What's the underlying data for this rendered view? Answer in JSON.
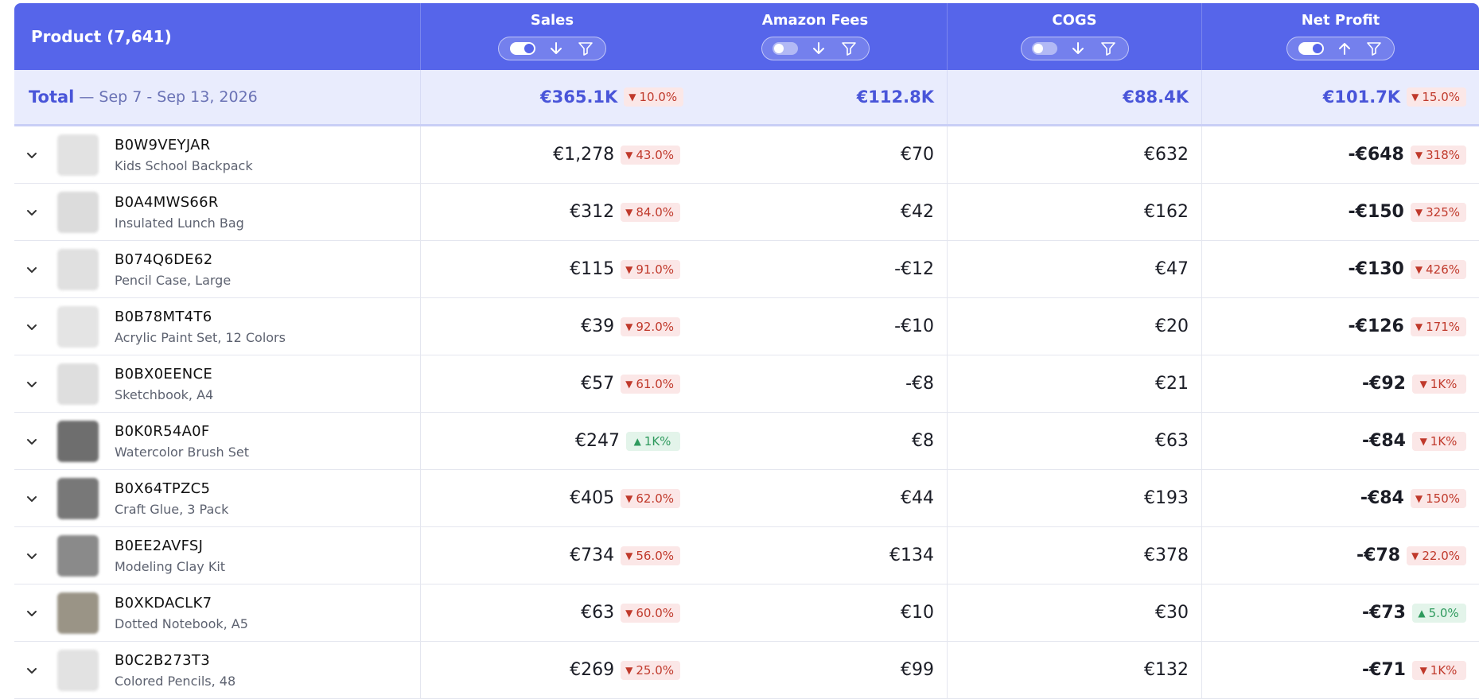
{
  "header": {
    "product_label": "Product (7,641)",
    "columns": [
      {
        "title": "Sales",
        "toggle": "on",
        "sort": "arrow-down-icon"
      },
      {
        "title": "Amazon Fees",
        "toggle": "off",
        "sort": "arrow-down-icon"
      },
      {
        "title": "COGS",
        "toggle": "off",
        "sort": "arrow-down-icon"
      },
      {
        "title": "Net Profit",
        "toggle": "on",
        "sort": "arrow-up-icon"
      }
    ]
  },
  "total": {
    "label": "Total",
    "date_range": "— Sep 7 - Sep 13, 2026",
    "sales": "€365.1K",
    "sales_change": "10.0%",
    "sales_dir": "down",
    "fees": "€112.8K",
    "cogs": "€88.4K",
    "net": "€101.7K",
    "net_change": "15.0%",
    "net_dir": "down"
  },
  "rows": [
    {
      "asin": "B0W9VEYJAR",
      "name": "Kids School Backpack",
      "thumb": "#e2e2e2",
      "sales": "€1,278",
      "sales_change": "43.0%",
      "sales_dir": "down",
      "fees": "€70",
      "cogs": "€632",
      "net": "-€648",
      "net_change": "318%",
      "net_dir": "down"
    },
    {
      "asin": "B0A4MWS66R",
      "name": "Insulated Lunch Bag",
      "thumb": "#dcdcdc",
      "sales": "€312",
      "sales_change": "84.0%",
      "sales_dir": "down",
      "fees": "€42",
      "cogs": "€162",
      "net": "-€150",
      "net_change": "325%",
      "net_dir": "down"
    },
    {
      "asin": "B074Q6DE62",
      "name": "Pencil Case, Large",
      "thumb": "#e0e0e0",
      "sales": "€115",
      "sales_change": "91.0%",
      "sales_dir": "down",
      "fees": "-€12",
      "cogs": "€47",
      "net": "-€130",
      "net_change": "426%",
      "net_dir": "down"
    },
    {
      "asin": "B0B78MT4T6",
      "name": "Acrylic Paint Set, 12 Colors",
      "thumb": "#e4e4e4",
      "sales": "€39",
      "sales_change": "92.0%",
      "sales_dir": "down",
      "fees": "-€10",
      "cogs": "€20",
      "net": "-€126",
      "net_change": "171%",
      "net_dir": "down"
    },
    {
      "asin": "B0BX0EENCE",
      "name": "Sketchbook, A4",
      "thumb": "#dedede",
      "sales": "€57",
      "sales_change": "61.0%",
      "sales_dir": "down",
      "fees": "-€8",
      "cogs": "€21",
      "net": "-€92",
      "net_change": "1K%",
      "net_dir": "down"
    },
    {
      "asin": "B0K0R54A0F",
      "name": "Watercolor Brush Set",
      "thumb": "#6e6e6e",
      "sales": "€247",
      "sales_change": "1K%",
      "sales_dir": "up",
      "fees": "€8",
      "cogs": "€63",
      "net": "-€84",
      "net_change": "1K%",
      "net_dir": "down"
    },
    {
      "asin": "B0X64TPZC5",
      "name": "Craft Glue, 3 Pack",
      "thumb": "#787878",
      "sales": "€405",
      "sales_change": "62.0%",
      "sales_dir": "down",
      "fees": "€44",
      "cogs": "€193",
      "net": "-€84",
      "net_change": "150%",
      "net_dir": "down"
    },
    {
      "asin": "B0EE2AVFSJ",
      "name": "Modeling Clay Kit",
      "thumb": "#8a8a8a",
      "sales": "€734",
      "sales_change": "56.0%",
      "sales_dir": "down",
      "fees": "€134",
      "cogs": "€378",
      "net": "-€78",
      "net_change": "22.0%",
      "net_dir": "down"
    },
    {
      "asin": "B0XKDACLK7",
      "name": "Dotted Notebook, A5",
      "thumb": "#9a9486",
      "sales": "€63",
      "sales_change": "60.0%",
      "sales_dir": "down",
      "fees": "€10",
      "cogs": "€30",
      "net": "-€73",
      "net_change": "5.0%",
      "net_dir": "up"
    },
    {
      "asin": "B0C2B273T3",
      "name": "Colored Pencils, 48",
      "thumb": "#e2e2e2",
      "sales": "€269",
      "sales_change": "25.0%",
      "sales_dir": "down",
      "fees": "€99",
      "cogs": "€132",
      "net": "-€71",
      "net_change": "1K%",
      "net_dir": "down"
    }
  ]
}
